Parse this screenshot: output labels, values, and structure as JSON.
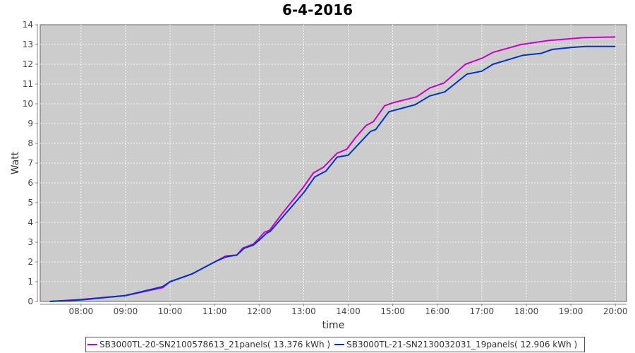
{
  "chart_data": {
    "type": "line",
    "title": "6-4-2016",
    "xlabel": "time",
    "ylabel": "Watt",
    "ylim": [
      0,
      14
    ],
    "xlim": [
      "07:05",
      "20:15"
    ],
    "x_ticks": [
      "08:00",
      "09:00",
      "10:00",
      "11:00",
      "12:00",
      "13:00",
      "14:00",
      "15:00",
      "16:00",
      "17:00",
      "18:00",
      "19:00",
      "20:00"
    ],
    "y_ticks": [
      0,
      1,
      2,
      3,
      4,
      5,
      6,
      7,
      8,
      9,
      10,
      11,
      12,
      13,
      14
    ],
    "grid": true,
    "legend": "bottom",
    "series": [
      {
        "name": "SB3000TL-20-SN2100578613_21panels( 13.376 kWh )",
        "color": "#cc00cc",
        "x": [
          "07:18",
          "08:00",
          "09:00",
          "09:50",
          "10:00",
          "10:30",
          "11:00",
          "11:15",
          "11:30",
          "11:38",
          "11:52",
          "12:00",
          "12:07",
          "12:14",
          "12:30",
          "13:00",
          "13:13",
          "13:27",
          "13:45",
          "13:58",
          "14:10",
          "14:24",
          "14:34",
          "14:49",
          "15:00",
          "15:32",
          "15:50",
          "16:09",
          "16:38",
          "17:00",
          "17:15",
          "17:53",
          "18:30",
          "19:18",
          "20:00"
        ],
        "y": [
          0.0,
          0.1,
          0.3,
          0.7,
          1.0,
          1.4,
          2.0,
          2.3,
          2.35,
          2.7,
          2.9,
          3.2,
          3.5,
          3.6,
          4.4,
          5.8,
          6.5,
          6.8,
          7.5,
          7.7,
          8.3,
          8.9,
          9.1,
          9.9,
          10.05,
          10.35,
          10.8,
          11.05,
          12.0,
          12.3,
          12.6,
          13.0,
          13.2,
          13.35,
          13.38
        ]
      },
      {
        "name": "SB3000TL-21-SN2130032031_19panels( 12.906 kWh )",
        "color": "#0033cc",
        "x": [
          "07:18",
          "08:00",
          "09:00",
          "09:50",
          "10:00",
          "10:30",
          "11:00",
          "11:15",
          "11:30",
          "11:40",
          "11:52",
          "12:00",
          "12:10",
          "12:15",
          "12:30",
          "13:00",
          "13:15",
          "13:30",
          "13:45",
          "14:00",
          "14:15",
          "14:30",
          "14:37",
          "14:55",
          "15:00",
          "15:30",
          "15:50",
          "16:10",
          "16:40",
          "17:00",
          "17:15",
          "17:55",
          "18:20",
          "18:35",
          "19:00",
          "19:20",
          "20:00"
        ],
        "y": [
          0.0,
          0.08,
          0.3,
          0.75,
          1.0,
          1.4,
          2.0,
          2.25,
          2.35,
          2.7,
          2.85,
          3.1,
          3.45,
          3.55,
          4.2,
          5.5,
          6.3,
          6.6,
          7.3,
          7.4,
          8.0,
          8.6,
          8.7,
          9.6,
          9.65,
          9.95,
          10.4,
          10.6,
          11.5,
          11.65,
          12.0,
          12.45,
          12.55,
          12.75,
          12.85,
          12.9,
          12.9
        ]
      }
    ]
  }
}
